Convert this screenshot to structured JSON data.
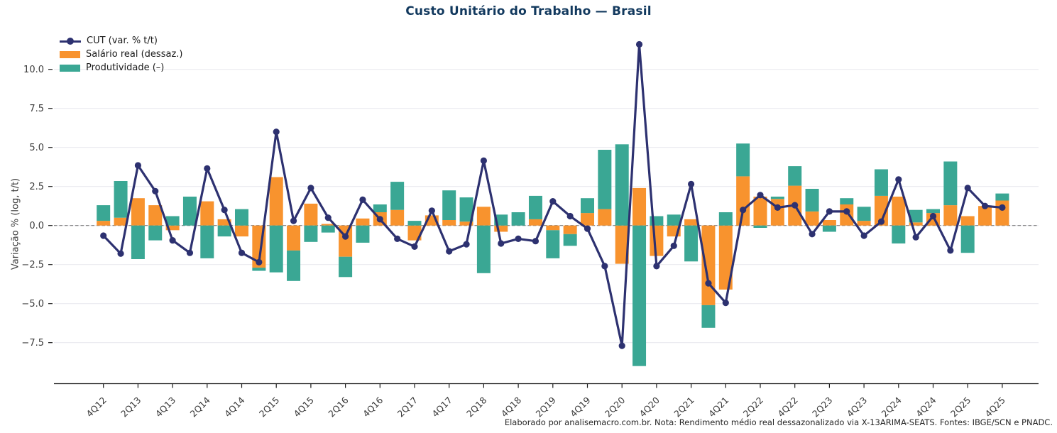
{
  "title": "Custo Unitário do Trabalho — Brasil",
  "footer": "Elaborado por analisemacro.com.br. Nota: Rendimento médio real dessazonalizado via X-13ARIMA-SEATS. Fontes: IBGE/SCN e PNADC.",
  "colors": {
    "cut_line": "#2d3170",
    "salario": "#f8932e",
    "produtividade": "#3aa794",
    "title": "#12395e",
    "grid": "#e9e9ef",
    "zero_line": "#7f7f7f",
    "axis": "#1a1a1a",
    "tick_text": "#3a3a3a"
  },
  "legend": {
    "items": [
      {
        "label": "CUT (var. % t/t)",
        "type": "line"
      },
      {
        "label": "Salário real (dessaz.)",
        "type": "bar"
      },
      {
        "label": "Produtividade (–)",
        "type": "bar"
      }
    ]
  },
  "y_axis": {
    "label": "Variação % (log, t/t)",
    "tick_values": [
      10.0,
      7.5,
      5.0,
      2.5,
      0.0,
      -2.5,
      -5.0,
      -7.5
    ],
    "tick_labels": [
      "10.0",
      "7.5",
      "5.0",
      "2.5",
      "0.0",
      "−2.5",
      "−5.0",
      "−7.5"
    ]
  },
  "chart_data": {
    "type": "combo-bar-line",
    "title": "Custo Unitário do Trabalho — Brasil",
    "ylabel": "Variação % (log, t/t)",
    "xlabel": "",
    "ylim": [
      -9.6,
      11.9
    ],
    "grid": true,
    "legend_position": "upper-left",
    "x": [
      "4Q12",
      "1Q13",
      "2Q13",
      "3Q13",
      "4Q13",
      "1Q14",
      "2Q14",
      "3Q14",
      "4Q14",
      "1Q15",
      "2Q15",
      "3Q15",
      "4Q15",
      "1Q16",
      "2Q16",
      "3Q16",
      "4Q16",
      "1Q17",
      "2Q17",
      "3Q17",
      "4Q17",
      "1Q18",
      "2Q18",
      "3Q18",
      "4Q18",
      "1Q19",
      "2Q19",
      "3Q19",
      "4Q19",
      "1Q20",
      "2Q20",
      "3Q20",
      "4Q20",
      "1Q21",
      "2Q21",
      "3Q21",
      "4Q21",
      "1Q22",
      "2Q22",
      "3Q22",
      "4Q22",
      "1Q23",
      "2Q23",
      "3Q23",
      "4Q23",
      "1Q24",
      "2Q24",
      "3Q24",
      "4Q24",
      "1Q25",
      "2Q25",
      "3Q25",
      "4Q25"
    ],
    "x_tick_labels": [
      "4Q12",
      "2Q13",
      "4Q13",
      "2Q14",
      "4Q14",
      "2Q15",
      "4Q15",
      "2Q16",
      "4Q16",
      "2Q17",
      "4Q17",
      "2Q18",
      "4Q18",
      "2Q19",
      "4Q19",
      "2Q20",
      "4Q20",
      "2Q21",
      "4Q21",
      "2Q22",
      "4Q22",
      "2Q23",
      "4Q23",
      "2Q24",
      "4Q24",
      "2Q25",
      "4Q25"
    ],
    "series": [
      {
        "name": "CUT (var. % t/t)",
        "type": "line",
        "values": [
          -0.65,
          -1.8,
          3.85,
          2.2,
          -0.95,
          -1.75,
          3.65,
          1.0,
          -1.75,
          -2.35,
          6.0,
          0.3,
          2.4,
          0.5,
          -0.7,
          1.65,
          0.4,
          -0.85,
          -1.35,
          0.95,
          -1.65,
          -1.2,
          4.15,
          -1.15,
          -0.85,
          -1.0,
          1.55,
          0.6,
          -0.2,
          -2.6,
          -7.7,
          11.6,
          -2.6,
          -1.3,
          2.65,
          -3.7,
          -4.95,
          1.0,
          1.95,
          1.15,
          1.3,
          -0.55,
          0.9,
          0.9,
          -0.65,
          0.25,
          2.95,
          -0.75,
          0.6,
          -1.6,
          2.4,
          1.25,
          1.15
        ]
      },
      {
        "name": "Salário real (dessaz.)",
        "type": "bar",
        "values": [
          0.3,
          0.5,
          1.75,
          1.3,
          -0.3,
          0.0,
          1.55,
          0.4,
          -0.7,
          -2.7,
          3.1,
          -1.6,
          1.4,
          0.1,
          -2.0,
          0.45,
          0.85,
          1.0,
          -0.95,
          0.65,
          0.35,
          0.25,
          1.2,
          -0.4,
          0.0,
          0.4,
          -0.3,
          -0.55,
          0.8,
          1.05,
          -2.45,
          2.4,
          -1.95,
          -0.7,
          0.4,
          -5.1,
          -4.1,
          3.15,
          1.85,
          1.7,
          2.55,
          0.9,
          0.35,
          1.35,
          0.3,
          1.9,
          1.85,
          0.2,
          0.8,
          1.3,
          0.6,
          1.25,
          1.6
        ]
      },
      {
        "name": "Produtividade (–)",
        "type": "bar",
        "values": [
          1.0,
          2.35,
          -2.15,
          -0.95,
          0.6,
          1.85,
          -2.1,
          -0.7,
          1.05,
          -0.2,
          -3.0,
          -1.95,
          -1.05,
          -0.45,
          -1.3,
          -1.1,
          0.5,
          1.8,
          0.3,
          0.0,
          1.9,
          1.55,
          -3.05,
          0.7,
          0.85,
          1.5,
          -1.8,
          -0.75,
          0.95,
          3.8,
          5.2,
          -9.0,
          0.6,
          0.7,
          -2.3,
          -1.45,
          0.85,
          2.1,
          -0.15,
          0.15,
          1.25,
          1.45,
          -0.4,
          0.4,
          0.9,
          1.7,
          -1.15,
          0.8,
          0.25,
          2.8,
          -1.75,
          0.0,
          0.45
        ]
      }
    ]
  }
}
